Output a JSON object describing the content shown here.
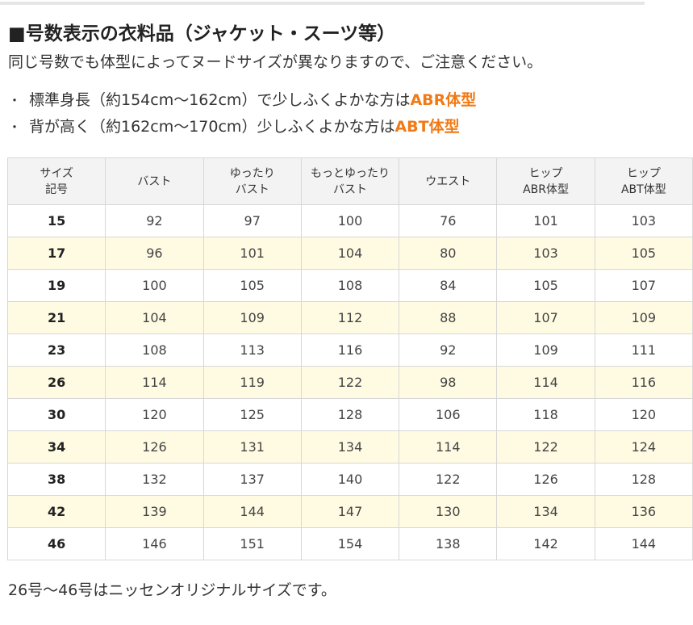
{
  "heading": "■号数表示の衣料品（ジャケット・スーツ等）",
  "intro": "同じ号数でも体型によってヌードサイズが異なりますので、ご注意ください。",
  "bullets": [
    {
      "mark": "・",
      "text": "標準身長（約154cm〜162cm）で少しふくよかな方は",
      "accent": "ABR体型"
    },
    {
      "mark": "・",
      "text": "背が高く（約162cm〜170cm）少しふくよかな方は",
      "accent": "ABT体型"
    }
  ],
  "accent_color": "#f07a16",
  "table": {
    "headers": [
      [
        "サイズ",
        "記号"
      ],
      [
        "バスト"
      ],
      [
        "ゆったり",
        "バスト"
      ],
      [
        "もっとゆったり",
        "バスト"
      ],
      [
        "ウエスト"
      ],
      [
        "ヒップ",
        "ABR体型"
      ],
      [
        "ヒップ",
        "ABT体型"
      ]
    ],
    "rows": [
      [
        "15",
        "92",
        "97",
        "100",
        "76",
        "101",
        "103"
      ],
      [
        "17",
        "96",
        "101",
        "104",
        "80",
        "103",
        "105"
      ],
      [
        "19",
        "100",
        "105",
        "108",
        "84",
        "105",
        "107"
      ],
      [
        "21",
        "104",
        "109",
        "112",
        "88",
        "107",
        "109"
      ],
      [
        "23",
        "108",
        "113",
        "116",
        "92",
        "109",
        "111"
      ],
      [
        "26",
        "114",
        "119",
        "122",
        "98",
        "114",
        "116"
      ],
      [
        "30",
        "120",
        "125",
        "128",
        "106",
        "118",
        "120"
      ],
      [
        "34",
        "126",
        "131",
        "134",
        "114",
        "122",
        "124"
      ],
      [
        "38",
        "132",
        "137",
        "140",
        "122",
        "126",
        "128"
      ],
      [
        "42",
        "139",
        "144",
        "147",
        "130",
        "134",
        "136"
      ],
      [
        "46",
        "146",
        "151",
        "154",
        "138",
        "142",
        "144"
      ]
    ],
    "row_highlight_color": "#fffbe3"
  },
  "note": "26号〜46号はニッセンオリジナルサイズです。"
}
